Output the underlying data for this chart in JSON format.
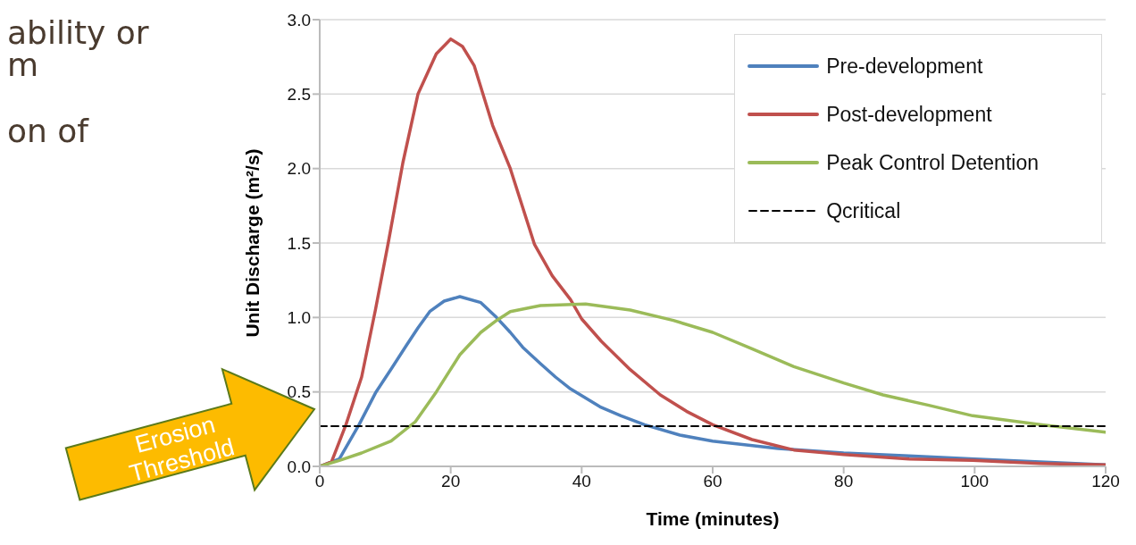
{
  "chart_data": {
    "type": "line",
    "xlabel": "Time (minutes)",
    "ylabel": "Unit Discharge (m²/s)",
    "annotations": [
      "ability or",
      "m",
      "on of",
      "Erosion Threshold"
    ],
    "xlim": [
      0,
      120
    ],
    "xticks": [
      0,
      20,
      40,
      60,
      80,
      100,
      120
    ],
    "ylim": [
      0,
      3
    ],
    "yticks": [
      {
        "value": 0,
        "label": "0.0"
      },
      0.5,
      {
        "value": 1,
        "label": "1.0"
      },
      1.5,
      {
        "value": 2,
        "label": "2.0"
      },
      2.5,
      {
        "value": 3,
        "label": "3.0"
      }
    ],
    "grid": "y",
    "legend": "top right",
    "marker": "none",
    "series": [
      {
        "name": "Pre-development",
        "color": "#4f81bd",
        "line_style": "solid",
        "x": [
          0,
          3,
          6,
          8.6,
          11,
          13.2,
          15,
          16.8,
          19,
          21.4,
          24.6,
          27,
          29.1,
          31,
          33.7,
          36,
          38.3,
          42.8,
          46,
          49.6,
          55,
          60,
          70,
          80,
          90,
          100,
          110,
          120
        ],
        "values": [
          0,
          0.05,
          0.28,
          0.5,
          0.66,
          0.81,
          0.93,
          1.04,
          1.11,
          1.14,
          1.1,
          1.0,
          0.9,
          0.8,
          0.69,
          0.6,
          0.52,
          0.4,
          0.34,
          0.28,
          0.21,
          0.17,
          0.12,
          0.09,
          0.07,
          0.05,
          0.03,
          0.01
        ]
      },
      {
        "name": "Post-development",
        "color": "#c0504d",
        "line_style": "solid",
        "x": [
          0,
          1.8,
          4,
          6.4,
          8.5,
          10.5,
          12.7,
          15,
          17.8,
          20,
          21.8,
          23.6,
          26.4,
          29.1,
          32.8,
          35.5,
          38.3,
          40,
          43,
          47.4,
          52,
          56,
          60,
          66,
          72.4,
          80,
          90,
          99.7,
          110,
          120
        ],
        "values": [
          0,
          0.03,
          0.28,
          0.6,
          1.05,
          1.51,
          2.04,
          2.5,
          2.77,
          2.87,
          2.82,
          2.69,
          2.29,
          2.0,
          1.49,
          1.28,
          1.12,
          0.99,
          0.84,
          0.65,
          0.48,
          0.37,
          0.28,
          0.18,
          0.11,
          0.08,
          0.05,
          0.04,
          0.02,
          0.01
        ]
      },
      {
        "name": "Peak Control Detention",
        "color": "#9bbb59",
        "line_style": "solid",
        "x": [
          0,
          3,
          6.4,
          10.9,
          14.6,
          17.8,
          21.4,
          24.6,
          27,
          29.1,
          33.7,
          40.6,
          47.4,
          54,
          60,
          66,
          72.4,
          80,
          86,
          93,
          99.7,
          110,
          120
        ],
        "values": [
          0,
          0.04,
          0.09,
          0.17,
          0.3,
          0.5,
          0.75,
          0.9,
          0.98,
          1.04,
          1.08,
          1.09,
          1.05,
          0.98,
          0.9,
          0.79,
          0.67,
          0.56,
          0.48,
          0.41,
          0.34,
          0.28,
          0.23
        ]
      },
      {
        "name": "Qcritical",
        "color": "#000000",
        "line_style": "dashed",
        "x": [
          0,
          120
        ],
        "values": [
          0.27,
          0.27
        ]
      }
    ]
  }
}
